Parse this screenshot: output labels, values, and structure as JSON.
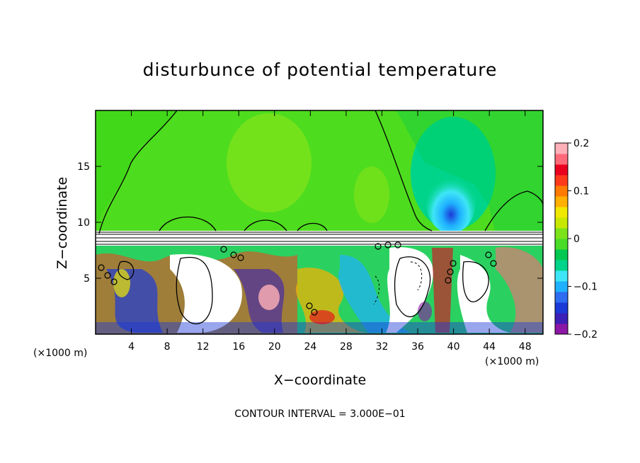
{
  "chart_data": {
    "type": "heatmap",
    "title": "disturbunce of potential temperature",
    "xlabel": "X−coordinate",
    "ylabel": "Z−coordinate",
    "x_unit_left": "(×1000 m)",
    "x_unit_right": "(×1000 m)",
    "xlim": [
      0,
      50
    ],
    "ylim": [
      0,
      20
    ],
    "x_ticks": [
      4,
      8,
      12,
      16,
      20,
      24,
      28,
      32,
      36,
      40,
      44,
      48
    ],
    "y_ticks": [
      5,
      10,
      15
    ],
    "colorbar": {
      "range": [
        -0.2,
        0.2
      ],
      "ticks": [
        {
          "value": 0.2,
          "label": "0.2"
        },
        {
          "value": 0.1,
          "label": "0.1"
        },
        {
          "value": 0,
          "label": "0"
        },
        {
          "value": -0.1,
          "label": "−0.1"
        },
        {
          "value": -0.2,
          "label": "−0.2"
        }
      ],
      "colors": [
        "#8c16a6",
        "#3c1fb6",
        "#1c3ad8",
        "#2e6cf0",
        "#1fb0ff",
        "#3fe6f6",
        "#00d48a",
        "#00c850",
        "#48dc28",
        "#7ce21a",
        "#c8e800",
        "#f0e800",
        "#ffb000",
        "#ff7a00",
        "#ff3a1a",
        "#e8001e",
        "#ff6a7a",
        "#ffb0b8"
      ]
    },
    "contour_interval": "CONTOUR INTERVAL = 3.000E−01"
  },
  "colors": {
    "upper_field": "#4edc1e",
    "upper_field_light": "#7ee31a",
    "cold_anomaly": "#19c8ff",
    "lower_background": "#2ad160",
    "white_band": "#ffffff"
  }
}
